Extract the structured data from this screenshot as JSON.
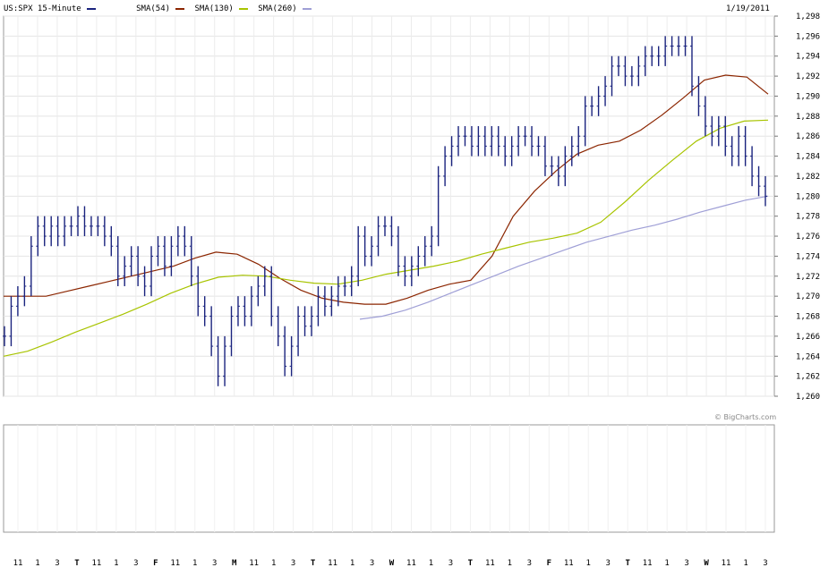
{
  "header": {
    "symbol_label": "US:SPX 15-Minute",
    "date": "1/19/2011",
    "legend": [
      {
        "label": "",
        "color": "#1a237e"
      },
      {
        "label": "SMA(54)",
        "color": "#8b2500"
      },
      {
        "label": "SMA(130)",
        "color": "#a8c400"
      },
      {
        "label": "SMA(260)",
        "color": "#9f9fd6"
      }
    ]
  },
  "watermark": "© BigCharts.com",
  "chart_data": {
    "type": "ohlc-bar",
    "title": "US:SPX 15-Minute",
    "date": "1/19/2011",
    "ylim": [
      1260,
      1298
    ],
    "y_ticks": [
      "1,260",
      "1,262",
      "1,264",
      "1,266",
      "1,268",
      "1,270",
      "1,272",
      "1,274",
      "1,276",
      "1,278",
      "1,280",
      "1,282",
      "1,284",
      "1,286",
      "1,288",
      "1,290",
      "1,292",
      "1,294",
      "1,296",
      "1,298"
    ],
    "x_ticks": [
      "11",
      "1",
      "3",
      "T",
      "11",
      "1",
      "3",
      "F",
      "11",
      "1",
      "3",
      "M",
      "11",
      "1",
      "3",
      "T",
      "11",
      "1",
      "3",
      "W",
      "11",
      "1",
      "3",
      "T",
      "11",
      "1",
      "3",
      "F",
      "11",
      "1",
      "3",
      "T",
      "11",
      "1",
      "3",
      "W",
      "11",
      "1",
      "3"
    ],
    "price_series_color": "#1a237e",
    "price": [
      1266,
      1269,
      1270,
      1271,
      1275,
      1277,
      1276,
      1277,
      1276,
      1277,
      1277,
      1278,
      1277,
      1277,
      1277,
      1276,
      1275,
      1272,
      1273,
      1274,
      1272,
      1271,
      1274,
      1275,
      1273,
      1275,
      1276,
      1275,
      1272,
      1269,
      1268,
      1265,
      1262,
      1265,
      1268,
      1269,
      1268,
      1270,
      1271,
      1272,
      1268,
      1266,
      1263,
      1265,
      1268,
      1267,
      1268,
      1270,
      1269,
      1270,
      1271,
      1271,
      1272,
      1276,
      1274,
      1275,
      1277,
      1277,
      1276,
      1273,
      1272,
      1273,
      1274,
      1275,
      1276,
      1282,
      1284,
      1285,
      1286,
      1286,
      1285,
      1286,
      1285,
      1286,
      1285,
      1284,
      1285,
      1286,
      1286,
      1285,
      1285,
      1283,
      1283,
      1282,
      1284,
      1285,
      1286,
      1289,
      1289,
      1290,
      1291,
      1293,
      1293,
      1292,
      1292,
      1293,
      1294,
      1294,
      1294,
      1295,
      1295,
      1295,
      1295,
      1291,
      1289,
      1287,
      1286,
      1287,
      1285,
      1284,
      1286,
      1284,
      1282,
      1281,
      1280
    ],
    "series": [
      {
        "name": "SMA(54)",
        "color": "#8b2500",
        "values": [
          1270,
          1270,
          1270,
          1270.5,
          1271,
          1271.5,
          1272,
          1272.5,
          1273,
          1273.8,
          1274.4,
          1274.2,
          1273.2,
          1271.8,
          1270.6,
          1269.8,
          1269.4,
          1269.2,
          1269.2,
          1269.8,
          1270.6,
          1271.2,
          1271.6,
          1274,
          1278,
          1280.5,
          1282.5,
          1284.2,
          1285.1,
          1285.5,
          1286.6,
          1288.1,
          1289.8,
          1291.6,
          1292.1,
          1291.9,
          1290.2
        ]
      },
      {
        "name": "SMA(130)",
        "color": "#a8c400",
        "values": [
          1264,
          1264.5,
          1265.4,
          1266.4,
          1267.3,
          1268.2,
          1269.2,
          1270.3,
          1271.2,
          1271.9,
          1272.1,
          1272.0,
          1271.6,
          1271.3,
          1271.2,
          1271.6,
          1272.2,
          1272.6,
          1273,
          1273.5,
          1274.2,
          1274.8,
          1275.4,
          1275.8,
          1276.3,
          1277.4,
          1279.4,
          1281.6,
          1283.6,
          1285.5,
          1286.8,
          1287.5,
          1287.6
        ]
      },
      {
        "name": "SMA(260)",
        "color": "#9f9fd6",
        "values": [
          1267.7,
          1268.0,
          1268.6,
          1269.4,
          1270.3,
          1271.2,
          1272.1,
          1273.0,
          1273.8,
          1274.6,
          1275.4,
          1276.0,
          1276.6,
          1277.1,
          1277.7,
          1278.4,
          1279.0,
          1279.6,
          1280.0
        ]
      }
    ]
  }
}
